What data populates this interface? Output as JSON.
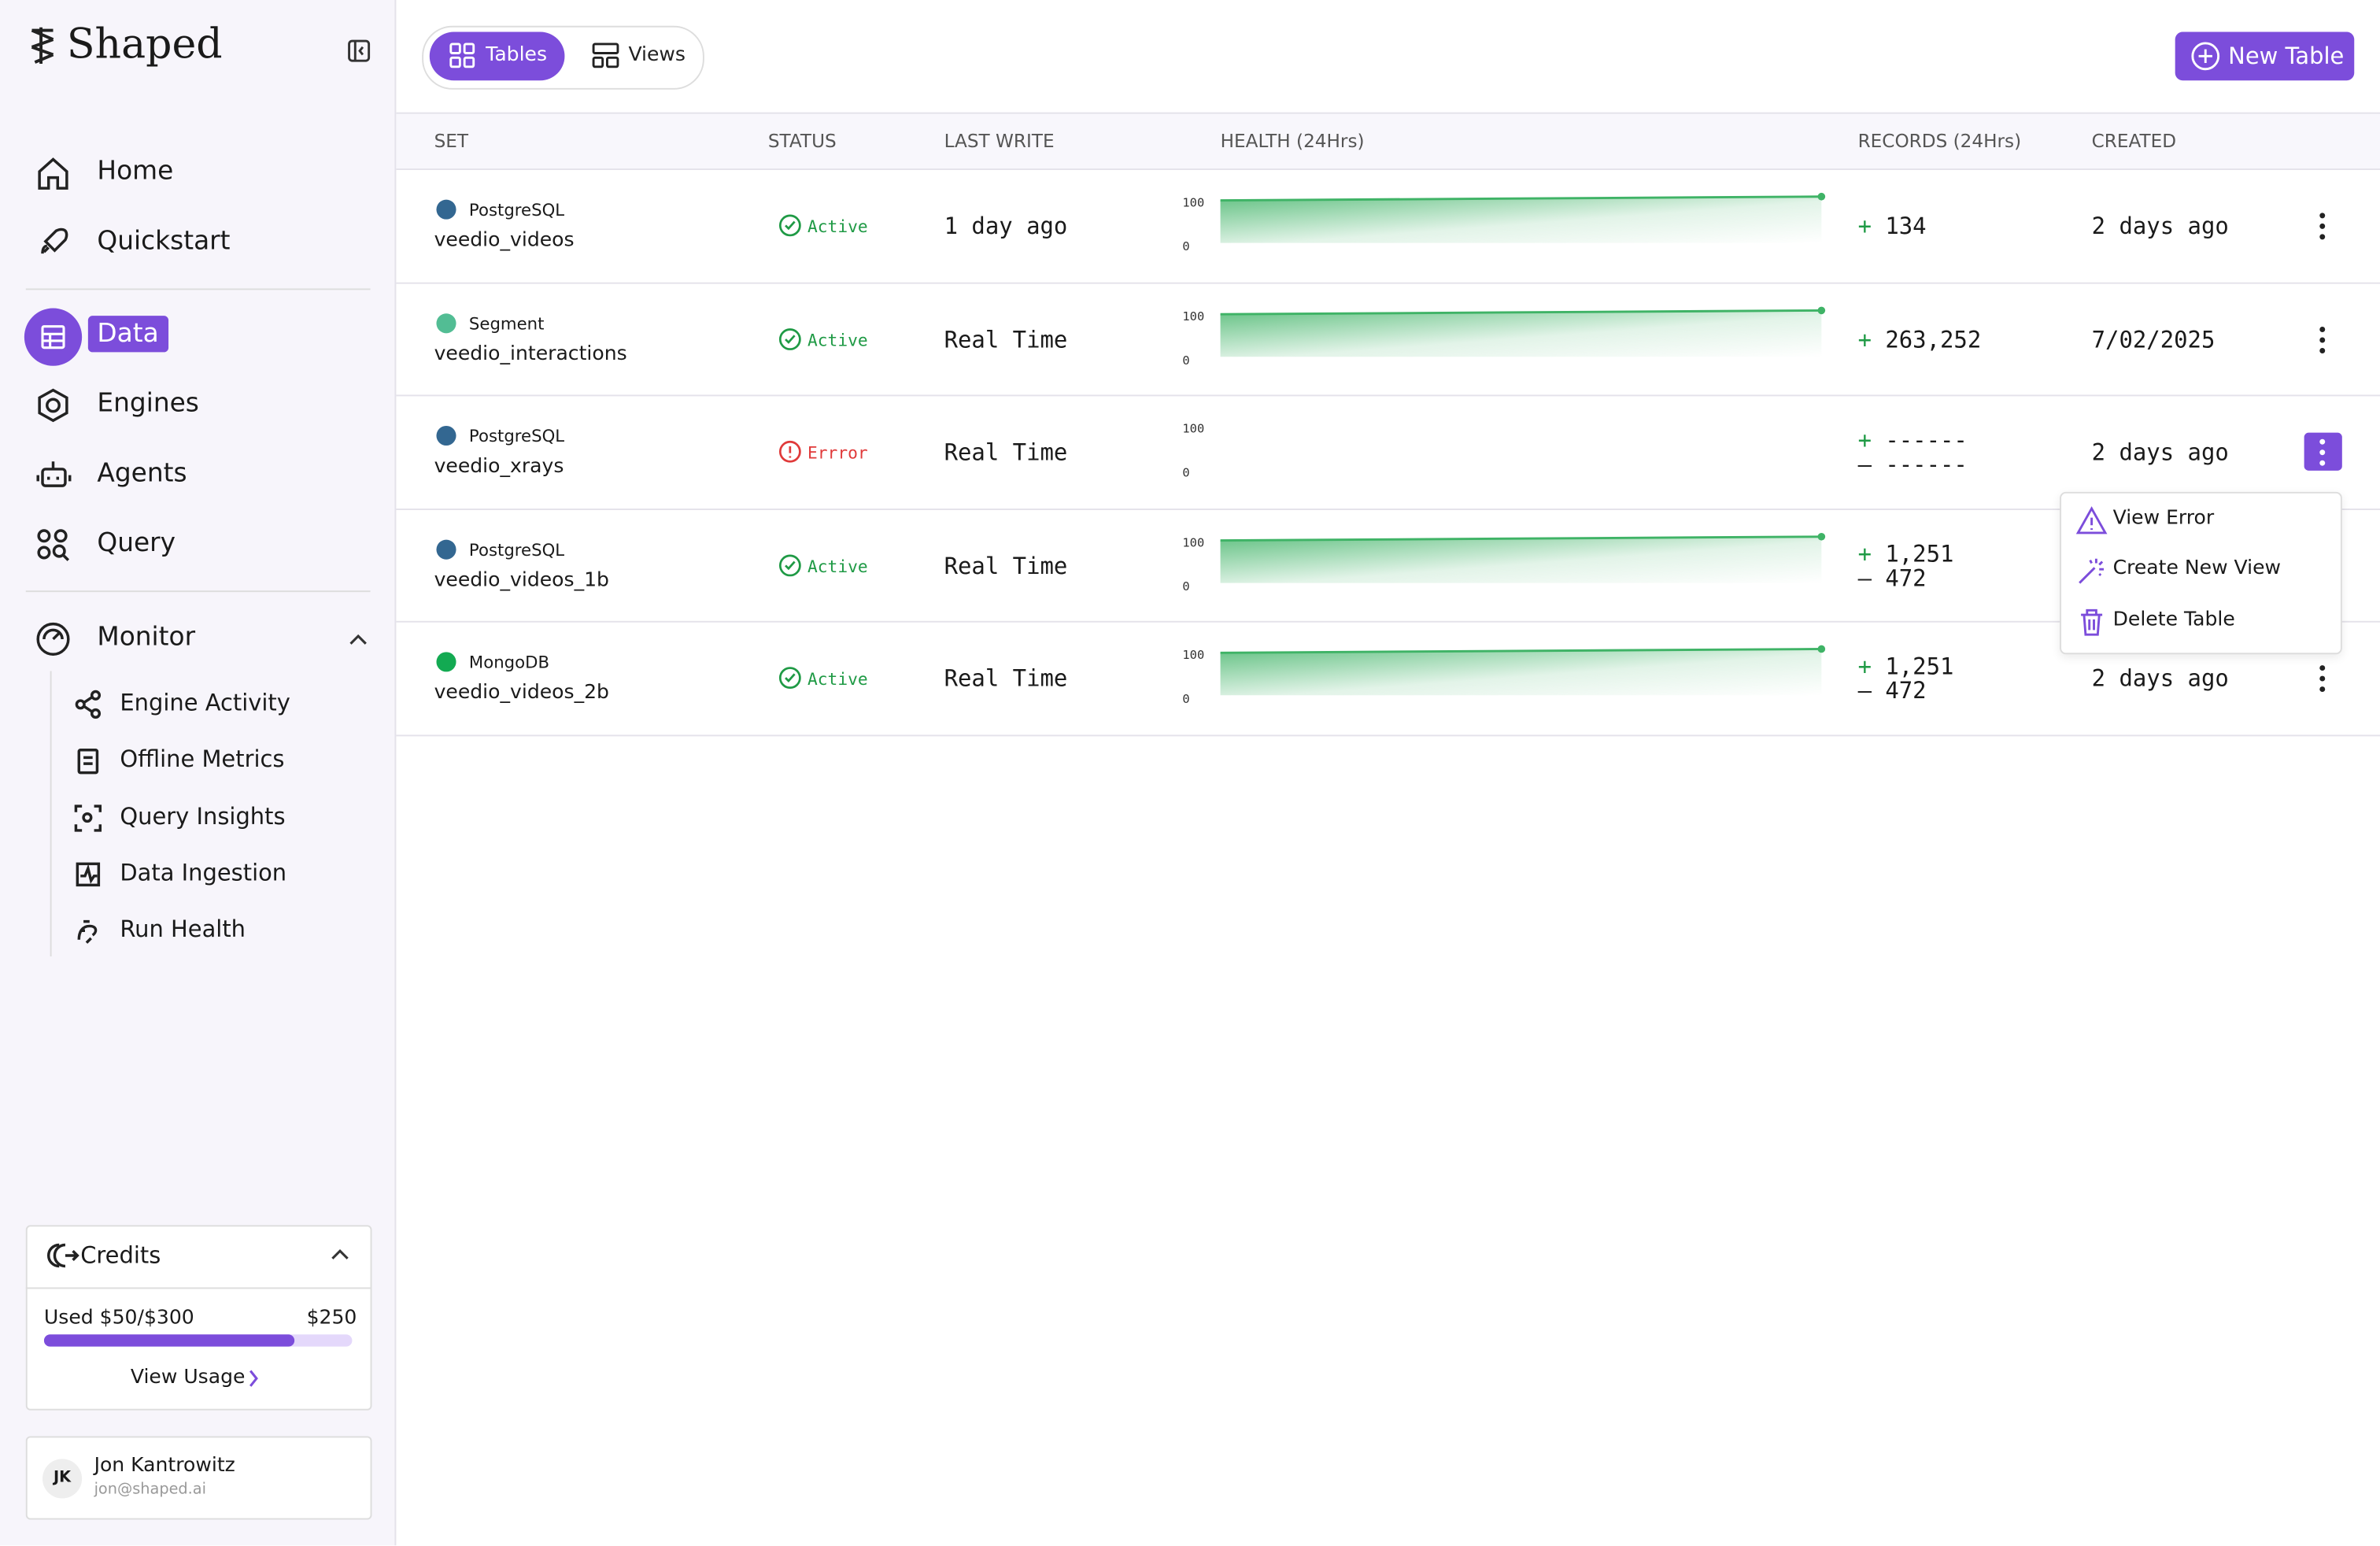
{
  "sidebar": {
    "brand": "Shaped",
    "nav": [
      "Home",
      "Quickstart",
      "Data",
      "Engines",
      "Agents",
      "Query"
    ],
    "active": "Data",
    "monitor": {
      "label": "Monitor",
      "items": [
        "Engine Activity",
        "Offline Metrics",
        "Query Insights",
        "Data Ingestion",
        "Run Health"
      ]
    },
    "credits": {
      "title": "Credits",
      "used": "Used $50/$300",
      "remaining": "$250",
      "link": "View Usage"
    },
    "user": {
      "initials": "JK",
      "name": "Jon Kantrowitz",
      "email": "jon@shaped.ai"
    }
  },
  "toolbar": {
    "tabs": [
      "Tables",
      "Views"
    ],
    "active": "Tables",
    "button": "New Table"
  },
  "table": {
    "columns": [
      "SET",
      "STATUS",
      "LAST WRITE",
      "HEALTH (24Hrs)",
      "RECORDS (24Hrs)",
      "CREATED"
    ],
    "rows": [
      {
        "source": "PostgreSQL",
        "color": "#336791",
        "name": "veedio_videos",
        "status": "Active",
        "last_write": "1 day ago",
        "health_max": "100",
        "health_min": "0",
        "records": [
          {
            "sign": "+",
            "value": "134"
          }
        ],
        "created": "2 days ago"
      },
      {
        "source": "Segment",
        "color": "#52bd94",
        "name": "veedio_interactions",
        "status": "Active",
        "last_write": "Real Time",
        "health_max": "100",
        "health_min": "0",
        "records": [
          {
            "sign": "+",
            "value": "263,252"
          }
        ],
        "created": "7/02/2025"
      },
      {
        "source": "PostgreSQL",
        "color": "#336791",
        "name": "veedio_xrays",
        "status": "Errror",
        "last_write": "Real Time",
        "health_max": "100",
        "health_min": "0",
        "records": [
          {
            "sign": "+",
            "value": "------"
          },
          {
            "sign": "–",
            "value": "------"
          }
        ],
        "created": "2 days ago"
      },
      {
        "source": "PostgreSQL",
        "color": "#336791",
        "name": "veedio_videos_1b",
        "status": "Active",
        "last_write": "Real Time",
        "health_max": "100",
        "health_min": "0",
        "records": [
          {
            "sign": "+",
            "value": "1,251"
          },
          {
            "sign": "–",
            "value": "472"
          }
        ]
      },
      {
        "source": "MongoDB",
        "color": "#13aa52",
        "name": "veedio_videos_2b",
        "status": "Active",
        "last_write": "Real Time",
        "health_max": "100",
        "health_min": "0",
        "records": [
          {
            "sign": "+",
            "value": "1,251"
          },
          {
            "sign": "–",
            "value": "472"
          }
        ],
        "created": "2 days ago"
      }
    ]
  },
  "menu": {
    "row": 2,
    "items": [
      "View Error",
      "Create New View",
      "Delete Table"
    ]
  }
}
